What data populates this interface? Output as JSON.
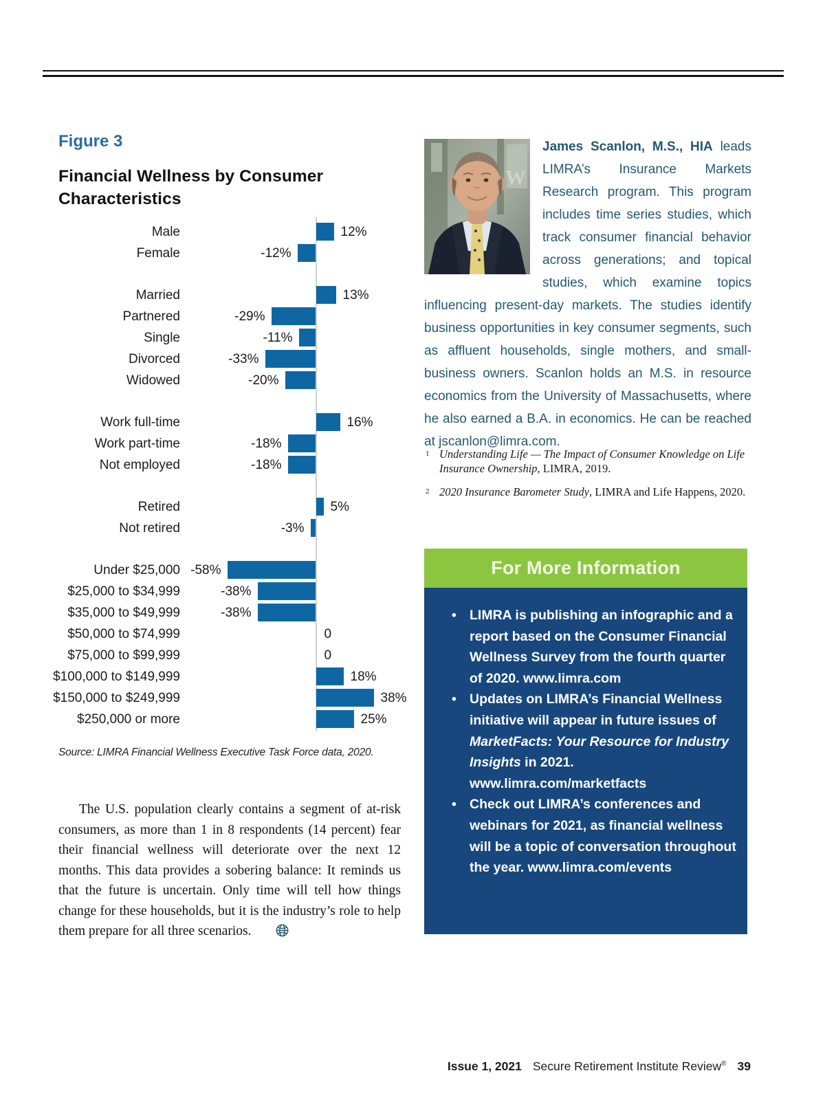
{
  "figure": {
    "label": "Figure 3",
    "title": "Financial Wellness by Consumer Characteristics"
  },
  "chart_data": {
    "type": "bar",
    "orientation": "horizontal",
    "unit": "percent",
    "bar_color": "#0e67a3",
    "axis_color": "#ccd0d3",
    "grid": false,
    "xlim": [
      -60,
      40
    ],
    "groups": [
      {
        "name": "gender",
        "rows": [
          {
            "label": "Male",
            "value": 12,
            "display": "12%"
          },
          {
            "label": "Female",
            "value": -12,
            "display": "-12%"
          }
        ]
      },
      {
        "name": "marital-status",
        "rows": [
          {
            "label": "Married",
            "value": 13,
            "display": "13%"
          },
          {
            "label": "Partnered",
            "value": -29,
            "display": "-29%"
          },
          {
            "label": "Single",
            "value": -11,
            "display": "-11%"
          },
          {
            "label": "Divorced",
            "value": -33,
            "display": "-33%"
          },
          {
            "label": "Widowed",
            "value": -20,
            "display": "-20%"
          }
        ]
      },
      {
        "name": "employment",
        "rows": [
          {
            "label": "Work full-time",
            "value": 16,
            "display": "16%"
          },
          {
            "label": "Work part-time",
            "value": -18,
            "display": "-18%"
          },
          {
            "label": "Not employed",
            "value": -18,
            "display": "-18%"
          }
        ]
      },
      {
        "name": "retirement",
        "rows": [
          {
            "label": "Retired",
            "value": 5,
            "display": "5%"
          },
          {
            "label": "Not retired",
            "value": -3,
            "display": "-3%"
          }
        ]
      },
      {
        "name": "income",
        "rows": [
          {
            "label": "Under $25,000",
            "value": -58,
            "display": "-58%"
          },
          {
            "label": "$25,000 to $34,999",
            "value": -38,
            "display": "-38%"
          },
          {
            "label": "$35,000 to $49,999",
            "value": -38,
            "display": "-38%"
          },
          {
            "label": "$50,000 to $74,999",
            "value": 0,
            "display": "0"
          },
          {
            "label": "$75,000 to $99,999",
            "value": 0,
            "display": "0"
          },
          {
            "label": "$100,000 to $149,999",
            "value": 18,
            "display": "18%"
          },
          {
            "label": "$150,000 to $249,999",
            "value": 38,
            "display": "38%"
          },
          {
            "label": "$250,000 or more",
            "value": 25,
            "display": "25%"
          }
        ]
      }
    ],
    "source": "Source: LIMRA Financial Wellness Executive Task Force data, 2020."
  },
  "bio": {
    "segments": [
      {
        "t": "James Scanlon, M.S., HIA",
        "b": true
      },
      {
        "t": " leads LIMRA’s Insurance Markets Research program. This program includes time series studies, which track consumer financial behavior across generations; and topical studies, which examine topics influencing present-day markets. The studies identify business opportunities in key consumer segments, such as affluent households, single mothers, and small-business owners. Scanlon holds an M.S. in resource economics from the University of Massachusetts, where he also earned a B.A. in economics. He can be reached at jscanlon@limra.com."
      }
    ]
  },
  "footnotes": [
    {
      "num": "1",
      "segments": [
        {
          "t": "Understanding Life — The Impact of Consumer Knowledge on Life Insurance Ownership",
          "i": true
        },
        {
          "t": ", LIMRA, 2019."
        }
      ]
    },
    {
      "num": "2",
      "segments": [
        {
          "t": "2020 Insurance Barometer Study",
          "i": true
        },
        {
          "t": ", LIMRA and Life Happens, 2020."
        }
      ]
    }
  ],
  "info_box": {
    "title": "For More Information",
    "header_bg": "#8cc640",
    "body_bg": "#17477d",
    "bullets": [
      [
        {
          "t": "LIMRA is publishing an infographic and a report based on the Consumer Financial Wellness Survey from the fourth quarter of 2020. www.limra.com"
        }
      ],
      [
        {
          "t": "Updates on LIMRA’s Financial Wellness initiative will appear in future issues of "
        },
        {
          "t": "MarketFacts: Your Resource for Industry Insights",
          "i": true
        },
        {
          "t": " in 2021. www.limra.com/marketfacts"
        }
      ],
      [
        {
          "t": "Check out LIMRA’s conferences and webinars for 2021, as financial wellness will be a topic of conversation throughout the year. www.limra.com/events"
        }
      ]
    ]
  },
  "paragraph": "The U.S. population clearly contains a segment of at-risk consumers, as more than 1 in 8 respondents (14 percent) fear their financial wellness will deteriorate over the next 12 months. This data provides a sobering balance: It reminds us that the future is uncertain. Only time will tell how things change for these households, but it is the industry’s role to help them prepare for all three scenarios.",
  "footer": {
    "issue": "Issue 1, 2021",
    "publication": "Secure Retirement Institute Review",
    "reg": "®",
    "page_number": "39"
  }
}
